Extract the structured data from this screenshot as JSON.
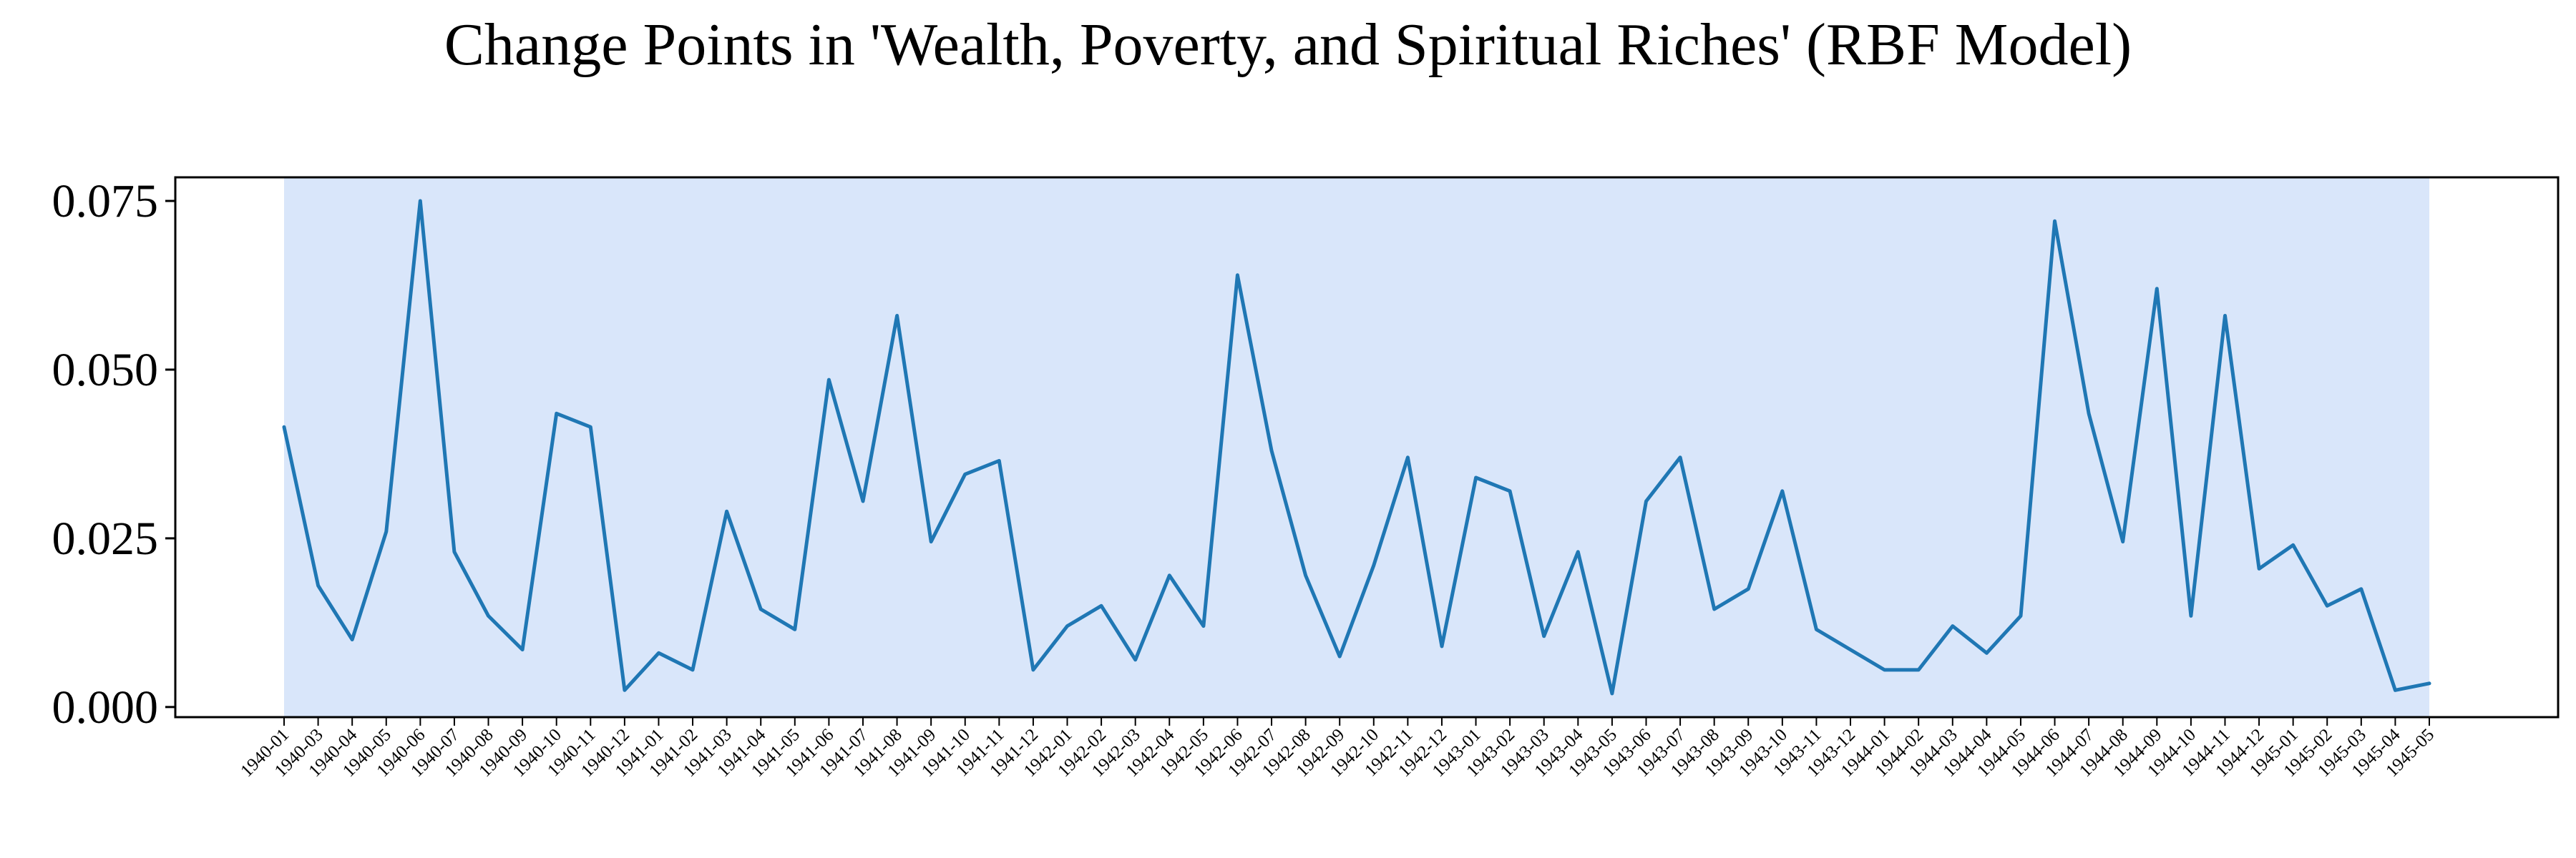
{
  "chart_data": {
    "type": "line",
    "title": "Change Points in 'Wealth, Poverty, and Spiritual Riches' (RBF Model)",
    "xlabel": "",
    "ylabel": "",
    "ylim": [
      -0.0015,
      0.0785
    ],
    "yticks": [
      0.0,
      0.025,
      0.05,
      0.075
    ],
    "ytick_labels": [
      "0.000",
      "0.025",
      "0.050",
      "0.075"
    ],
    "grid": false,
    "legend": "none",
    "shaded_region": {
      "from": "1940-01",
      "to": "1945-05",
      "color": "#d9e6fa"
    },
    "line_color": "#1f77b4",
    "x": [
      "1940-01",
      "1940-03",
      "1940-04",
      "1940-05",
      "1940-06",
      "1940-07",
      "1940-08",
      "1940-09",
      "1940-10",
      "1940-11",
      "1940-12",
      "1941-01",
      "1941-02",
      "1941-03",
      "1941-04",
      "1941-05",
      "1941-06",
      "1941-07",
      "1941-08",
      "1941-09",
      "1941-10",
      "1941-11",
      "1941-12",
      "1942-01",
      "1942-02",
      "1942-03",
      "1942-04",
      "1942-05",
      "1942-06",
      "1942-07",
      "1942-08",
      "1942-09",
      "1942-10",
      "1942-11",
      "1942-12",
      "1943-01",
      "1943-02",
      "1943-03",
      "1943-04",
      "1943-05",
      "1943-06",
      "1943-07",
      "1943-08",
      "1943-09",
      "1943-10",
      "1943-11",
      "1943-12",
      "1944-01",
      "1944-02",
      "1944-03",
      "1944-04",
      "1944-05",
      "1944-06",
      "1944-07",
      "1944-08",
      "1944-09",
      "1944-10",
      "1944-11",
      "1944-12",
      "1945-01",
      "1945-02",
      "1945-03",
      "1945-04",
      "1945-05"
    ],
    "series": [
      {
        "values": [
          0.0415,
          0.018,
          0.01,
          0.026,
          0.075,
          0.023,
          0.0135,
          0.0085,
          0.0435,
          0.0415,
          0.0025,
          0.008,
          0.0055,
          0.029,
          0.0145,
          0.0115,
          0.0485,
          0.0305,
          0.058,
          0.0245,
          0.0345,
          0.0365,
          0.0055,
          0.012,
          0.015,
          0.007,
          0.0195,
          0.012,
          0.064,
          0.038,
          0.0195,
          0.0075,
          0.021,
          0.037,
          0.009,
          0.034,
          0.032,
          0.0105,
          0.023,
          0.002,
          0.0305,
          0.037,
          0.0145,
          0.0175,
          0.032,
          0.0115,
          0.0085,
          0.0055,
          0.0055,
          0.012,
          0.008,
          0.0135,
          0.072,
          0.0435,
          0.0245,
          0.062,
          0.0135,
          0.058,
          0.0205,
          0.024,
          0.015,
          0.0175,
          0.0025,
          0.0035
        ]
      }
    ]
  }
}
